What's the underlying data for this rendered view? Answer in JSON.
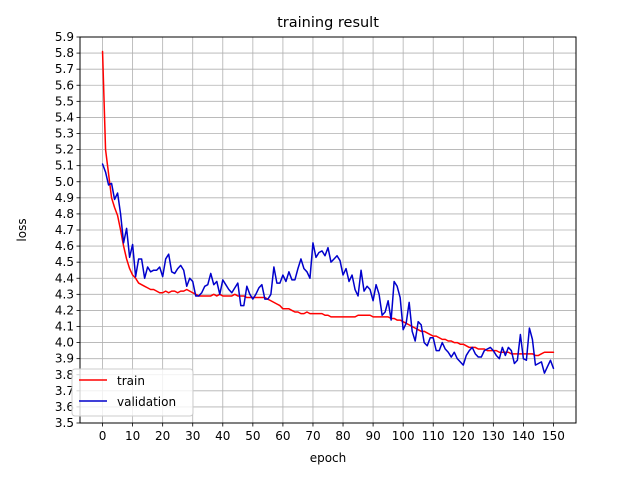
{
  "chart_data": {
    "type": "line",
    "title": "training result",
    "xlabel": "epoch",
    "ylabel": "loss",
    "xlim": [
      -7.5,
      157.5
    ],
    "ylim": [
      3.5,
      5.9
    ],
    "grid": true,
    "legend_position": "lower-left",
    "x_ticks": [
      0,
      10,
      20,
      30,
      40,
      50,
      60,
      70,
      80,
      90,
      100,
      110,
      120,
      130,
      140,
      150
    ],
    "y_ticks": [
      3.5,
      3.6,
      3.7,
      3.8,
      3.9,
      4.0,
      4.1,
      4.2,
      4.3,
      4.4,
      4.5,
      4.6,
      4.7,
      4.8,
      4.9,
      5.0,
      5.1,
      5.2,
      5.3,
      5.4,
      5.5,
      5.6,
      5.7,
      5.8,
      5.9
    ],
    "series": [
      {
        "name": "train",
        "color": "#ff0000",
        "values": [
          5.81,
          5.2,
          5.05,
          4.9,
          4.84,
          4.79,
          4.7,
          4.6,
          4.52,
          4.46,
          4.42,
          4.4,
          4.37,
          4.36,
          4.35,
          4.34,
          4.33,
          4.33,
          4.32,
          4.31,
          4.31,
          4.32,
          4.31,
          4.32,
          4.32,
          4.31,
          4.32,
          4.32,
          4.33,
          4.32,
          4.31,
          4.3,
          4.29,
          4.29,
          4.29,
          4.29,
          4.29,
          4.3,
          4.29,
          4.3,
          4.29,
          4.29,
          4.29,
          4.29,
          4.3,
          4.29,
          4.29,
          4.29,
          4.28,
          4.28,
          4.28,
          4.28,
          4.28,
          4.28,
          4.28,
          4.27,
          4.26,
          4.25,
          4.24,
          4.23,
          4.21,
          4.21,
          4.21,
          4.2,
          4.19,
          4.19,
          4.18,
          4.18,
          4.19,
          4.18,
          4.18,
          4.18,
          4.18,
          4.18,
          4.17,
          4.17,
          4.16,
          4.16,
          4.16,
          4.16,
          4.16,
          4.16,
          4.16,
          4.16,
          4.16,
          4.17,
          4.17,
          4.17,
          4.17,
          4.17,
          4.16,
          4.16,
          4.16,
          4.16,
          4.16,
          4.16,
          4.15,
          4.15,
          4.14,
          4.14,
          4.13,
          4.12,
          4.11,
          4.1,
          4.09,
          4.08,
          4.07,
          4.07,
          4.06,
          4.05,
          4.04,
          4.04,
          4.03,
          4.02,
          4.02,
          4.01,
          4.01,
          4.0,
          4.0,
          3.99,
          3.99,
          3.98,
          3.97,
          3.97,
          3.97,
          3.96,
          3.96,
          3.96,
          3.95,
          3.95,
          3.95,
          3.95,
          3.94,
          3.94,
          3.94,
          3.94,
          3.93,
          3.93,
          3.93,
          3.93,
          3.93,
          3.93,
          3.93,
          3.93,
          3.92,
          3.92,
          3.93,
          3.94,
          3.94,
          3.94,
          3.94
        ]
      },
      {
        "name": "validation",
        "color": "#0000cc",
        "values": [
          5.11,
          5.06,
          4.98,
          4.99,
          4.89,
          4.93,
          4.8,
          4.62,
          4.71,
          4.53,
          4.61,
          4.41,
          4.52,
          4.52,
          4.4,
          4.47,
          4.44,
          4.45,
          4.45,
          4.47,
          4.41,
          4.52,
          4.55,
          4.44,
          4.43,
          4.46,
          4.48,
          4.45,
          4.35,
          4.4,
          4.38,
          4.29,
          4.29,
          4.31,
          4.35,
          4.36,
          4.43,
          4.36,
          4.38,
          4.3,
          4.39,
          4.36,
          4.33,
          4.31,
          4.34,
          4.37,
          4.23,
          4.23,
          4.35,
          4.3,
          4.27,
          4.3,
          4.34,
          4.36,
          4.27,
          4.27,
          4.3,
          4.47,
          4.37,
          4.37,
          4.42,
          4.38,
          4.44,
          4.39,
          4.39,
          4.46,
          4.52,
          4.46,
          4.44,
          4.4,
          4.62,
          4.53,
          4.56,
          4.57,
          4.54,
          4.59,
          4.5,
          4.52,
          4.54,
          4.51,
          4.42,
          4.46,
          4.38,
          4.42,
          4.33,
          4.29,
          4.45,
          4.32,
          4.35,
          4.33,
          4.26,
          4.36,
          4.3,
          4.17,
          4.19,
          4.26,
          4.14,
          4.38,
          4.35,
          4.28,
          4.08,
          4.12,
          4.25,
          4.07,
          4.01,
          4.13,
          4.11,
          4.0,
          3.98,
          4.03,
          4.03,
          3.95,
          3.95,
          4.0,
          3.96,
          3.94,
          3.91,
          3.94,
          3.9,
          3.88,
          3.86,
          3.92,
          3.95,
          3.97,
          3.93,
          3.91,
          3.91,
          3.95,
          3.96,
          3.97,
          3.95,
          3.92,
          3.9,
          3.97,
          3.92,
          3.97,
          3.95,
          3.87,
          3.89,
          4.05,
          3.9,
          3.89,
          4.09,
          4.02,
          3.86,
          3.87,
          3.88,
          3.81,
          3.85,
          3.89,
          3.84
        ]
      }
    ]
  }
}
